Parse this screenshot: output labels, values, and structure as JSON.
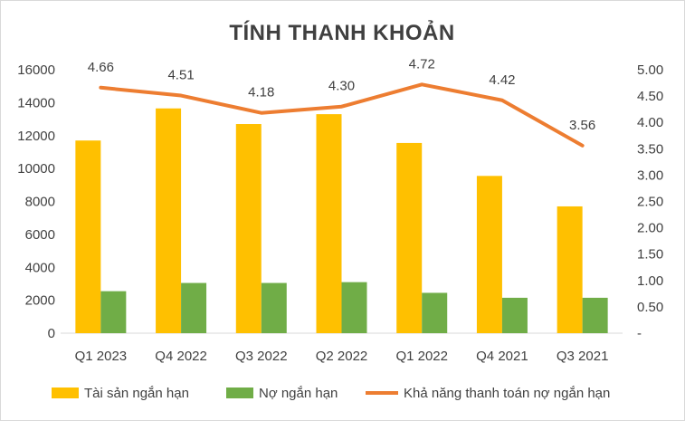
{
  "chart_data": {
    "type": "bar",
    "title": "TÍNH THANH KHOẢN",
    "categories": [
      "Q1 2023",
      "Q4 2022",
      "Q3 2022",
      "Q2 2022",
      "Q1 2022",
      "Q4 2021",
      "Q3 2021"
    ],
    "series": [
      {
        "name": "Tài sản ngắn hạn",
        "type": "bar",
        "axis": "left",
        "color": "#FFC000",
        "values": [
          11700,
          13650,
          12700,
          13300,
          11550,
          9550,
          7700
        ]
      },
      {
        "name": "Nợ ngắn hạn",
        "type": "bar",
        "axis": "left",
        "color": "#70AD47",
        "values": [
          2550,
          3050,
          3050,
          3100,
          2450,
          2150,
          2150
        ]
      },
      {
        "name": "Khả năng thanh toán nợ ngắn hạn",
        "type": "line",
        "axis": "right",
        "color": "#ED7D31",
        "values": [
          4.66,
          4.51,
          4.18,
          4.3,
          4.72,
          4.42,
          3.56
        ],
        "labels": [
          "4.66",
          "4.51",
          "4.18",
          "4.30",
          "4.72",
          "4.42",
          "3.56"
        ]
      }
    ],
    "y_left": {
      "ylim": [
        0,
        16000
      ],
      "ticks": [
        "0",
        "2000",
        "4000",
        "6000",
        "8000",
        "10000",
        "12000",
        "14000",
        "16000"
      ]
    },
    "y_right": {
      "ylim": [
        0,
        5
      ],
      "ticks": [
        "-",
        "0.50",
        "1.00",
        "1.50",
        "2.00",
        "2.50",
        "3.00",
        "3.50",
        "4.00",
        "4.50",
        "5.00"
      ]
    },
    "grid": false,
    "legend_position": "bottom"
  }
}
